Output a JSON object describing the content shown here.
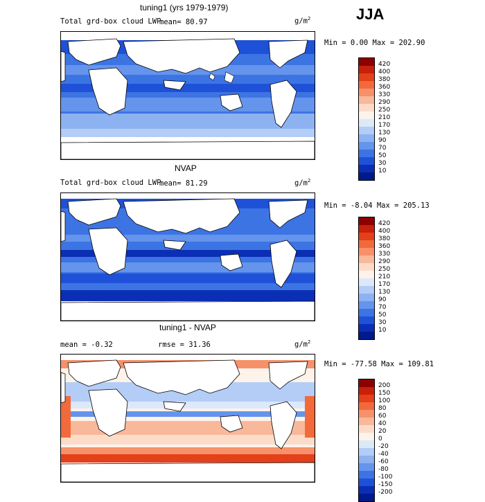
{
  "season": "JJA",
  "panels": [
    {
      "title": "tuning1 (yrs 1979-1979)",
      "field": "Total grd-box cloud LWP",
      "stat": "mean=  80.97",
      "units": "g/m",
      "units_exp": "2",
      "minmax": "Min =   0.00 Max = 202.90",
      "colorbar": {
        "labels": [
          "420",
          "400",
          "380",
          "360",
          "330",
          "290",
          "250",
          "210",
          "170",
          "130",
          "90",
          "70",
          "50",
          "30",
          "10"
        ],
        "colors": [
          "#8b0000",
          "#c8200a",
          "#e4401a",
          "#f26a3c",
          "#f6916a",
          "#f9b89a",
          "#fcdcc8",
          "#fdf3ea",
          "#dce9fb",
          "#b4cdf7",
          "#8cb2f2",
          "#6494ec",
          "#3d74e4",
          "#1f51d8",
          "#0a2fb5",
          "#001a8c"
        ]
      }
    },
    {
      "title": "NVAP",
      "field": "Total grd-box cloud LWP",
      "stat": "mean=  81.29",
      "units": "g/m",
      "units_exp": "2",
      "minmax": "Min =  -8.04 Max = 205.13",
      "colorbar": {
        "labels": [
          "420",
          "400",
          "380",
          "360",
          "330",
          "290",
          "250",
          "210",
          "170",
          "130",
          "90",
          "70",
          "50",
          "30",
          "10"
        ],
        "colors": [
          "#8b0000",
          "#c8200a",
          "#e4401a",
          "#f26a3c",
          "#f6916a",
          "#f9b89a",
          "#fcdcc8",
          "#fdf3ea",
          "#dce9fb",
          "#b4cdf7",
          "#8cb2f2",
          "#6494ec",
          "#3d74e4",
          "#1f51d8",
          "#0a2fb5",
          "#001a8c"
        ]
      }
    },
    {
      "title": "tuning1 - NVAP",
      "stat_left": "mean =  -0.32",
      "stat_right": "rmse =  31.36",
      "units": "g/m",
      "units_exp": "2",
      "minmax": "Min = -77.58 Max = 109.81",
      "colorbar": {
        "labels": [
          "200",
          "150",
          "100",
          "80",
          "60",
          "40",
          "20",
          "0",
          "-20",
          "-40",
          "-60",
          "-80",
          "-100",
          "-150",
          "-200"
        ],
        "colors": [
          "#8b0000",
          "#c8200a",
          "#e4401a",
          "#f26a3c",
          "#f6916a",
          "#f9b89a",
          "#fcdcc8",
          "#fdf3ea",
          "#dce9fb",
          "#b4cdf7",
          "#8cb2f2",
          "#6494ec",
          "#3d74e4",
          "#1f51d8",
          "#0a2fb5",
          "#001a8c"
        ]
      }
    }
  ]
}
